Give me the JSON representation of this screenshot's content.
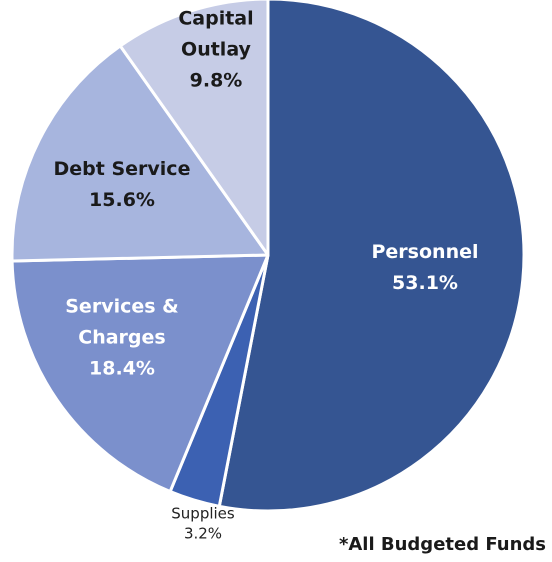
{
  "chart_data": {
    "type": "pie",
    "slices": [
      {
        "label": [
          "Personnel"
        ],
        "value": 53.1,
        "value_label": "53.1%",
        "color": "#355592",
        "text_color": "#ffffff"
      },
      {
        "label": [
          "Supplies"
        ],
        "value": 3.2,
        "value_label": "3.2%",
        "color": "#3c61b2",
        "text_color": "#222222"
      },
      {
        "label": [
          "Services &",
          "Charges"
        ],
        "value": 18.4,
        "value_label": "18.4%",
        "color": "#7b90cc",
        "text_color": "#ffffff"
      },
      {
        "label": [
          "Debt Service"
        ],
        "value": 15.6,
        "value_label": "15.6%",
        "color": "#a7b5de",
        "text_color": "#1a1a1a"
      },
      {
        "label": [
          "Capital",
          "Outlay"
        ],
        "value": 9.8,
        "value_label": "9.8%",
        "color": "#c6cce6",
        "text_color": "#1a1a1a"
      }
    ],
    "start_angle": "12 o'clock",
    "direction": "clockwise",
    "footnote": "*All Budgeted Funds"
  }
}
